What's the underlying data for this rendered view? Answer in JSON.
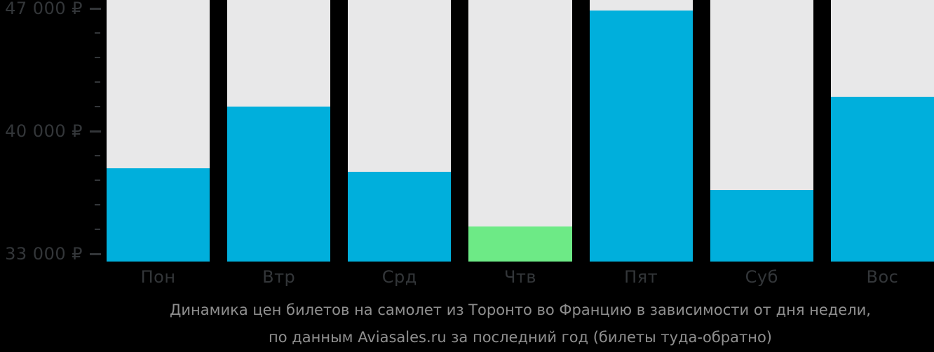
{
  "chart_data": {
    "type": "bar",
    "title": "",
    "categories": [
      "Пон",
      "Втр",
      "Срд",
      "Чтв",
      "Пят",
      "Суб",
      "Вос"
    ],
    "values": [
      37900,
      41400,
      37700,
      34550,
      46900,
      36650,
      41950
    ],
    "bar_colors": [
      "#00afdc",
      "#00afdc",
      "#00afdc",
      "#6dea86",
      "#00afdc",
      "#00afdc",
      "#00afdc"
    ],
    "highlight_index": 3,
    "highlight_meaning": "cheapest-day",
    "xlabel": "",
    "ylabel": "",
    "currency": "₽",
    "y_ticks": [
      {
        "value": 47000,
        "label": "47 000 ₽"
      },
      {
        "value": 40000,
        "label": "40 000 ₽"
      },
      {
        "value": 33000,
        "label": "33 000 ₽"
      }
    ],
    "y_minor_step": 1400,
    "ylim_drawn": [
      32560,
      47480
    ],
    "grid": false,
    "legend_position": "none",
    "column_track_background": "#e8e8e9"
  },
  "caption": {
    "line1": "Динамика цен билетов на самолет из Торонто во Францию в зависимости от дня недели,",
    "line2": "по данным Aviasales.ru за последний год (билеты туда-обратно)"
  },
  "colors": {
    "bg": "#000000",
    "bar-blue": "#00afdc",
    "bar-green": "#6dea86",
    "col-bg": "#e8e8e9",
    "axis-text": "#333639",
    "caption-text": "#8f8f8f"
  }
}
